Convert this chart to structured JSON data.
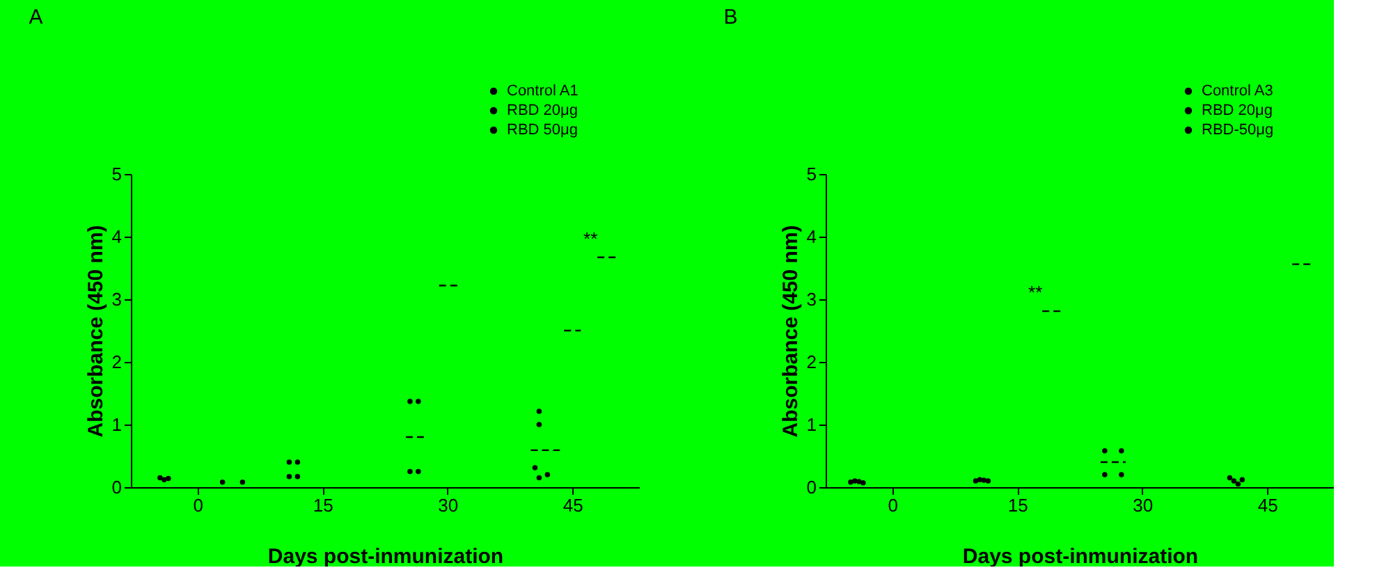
{
  "chart_data": [
    {
      "type": "scatter",
      "title": "A",
      "xlabel": "Days post-inmunization",
      "ylabel": "Absorbance (450 nm)",
      "xlim": [
        -8,
        53
      ],
      "xticks": [
        0,
        15,
        30,
        45
      ],
      "ylim": [
        0,
        5
      ],
      "yticks": [
        0,
        1,
        2,
        3,
        4,
        5
      ],
      "grid": false,
      "legend": "top right",
      "annotations": [
        {
          "text": "**",
          "x": 48,
          "y": 3.67
        }
      ],
      "series": [
        {
          "name": "Control A1",
          "marker": "circle",
          "color": "#000000",
          "x": [
            -4.5,
            -4,
            -3.5,
            11,
            12,
            11,
            12,
            25.5,
            26.5,
            25.5,
            26.5,
            41,
            41,
            40.5,
            41,
            42
          ],
          "values": [
            0.15,
            0.12,
            0.14,
            0.4,
            0.4,
            0.17,
            0.17,
            1.37,
            1.37,
            0.25,
            0.25,
            1.21,
            1.0,
            0.31,
            0.15,
            0.2
          ]
        },
        {
          "marker": "circle",
          "color": "#000000",
          "x": [
            3,
            5.4
          ],
          "values": [
            0.08,
            0.08
          ]
        },
        {
          "type": "line",
          "line_style": "dashed",
          "color": "#000000",
          "x": [
            25,
            27.5,
            null,
            40,
            43.5
          ],
          "values": [
            0.8,
            0.8,
            null,
            0.59,
            0.59
          ]
        },
        {
          "name": "RBD 20μg",
          "type": "line",
          "line_style": "dashed",
          "color": "#000000",
          "x": [
            29,
            31.5,
            null,
            44,
            46
          ],
          "values": [
            3.22,
            3.22,
            null,
            2.5,
            2.5
          ]
        },
        {
          "name": "RBD 50μg",
          "type": "line",
          "line_style": "dashed",
          "color": "#000000",
          "x": [
            48,
            50.5
          ],
          "values": [
            3.67,
            3.67
          ]
        }
      ]
    },
    {
      "type": "scatter",
      "title": "B",
      "xlabel": "Days post-inmunization",
      "ylabel": "Absorbance (450 nm)",
      "xlim": [
        -8,
        53
      ],
      "xticks": [
        0,
        15,
        30,
        45
      ],
      "ylim": [
        0,
        5
      ],
      "yticks": [
        0,
        1,
        2,
        3,
        4,
        5
      ],
      "grid": false,
      "legend": "top right",
      "annotations": [
        {
          "text": "**",
          "x": 18,
          "y": 2.81
        }
      ],
      "series": [
        {
          "name": "Control A3",
          "marker": "circle",
          "color": "#000000",
          "x": [
            -5,
            -4.5,
            -4,
            -3.5,
            10,
            10.5,
            11,
            11.5,
            25.5,
            27.5,
            25.5,
            27.5,
            40.5,
            41,
            41.5,
            42
          ],
          "values": [
            0.08,
            0.1,
            0.09,
            0.07,
            0.1,
            0.12,
            0.11,
            0.1,
            0.58,
            0.58,
            0.2,
            0.2,
            0.15,
            0.1,
            0.05,
            0.12
          ]
        },
        {
          "type": "line",
          "line_style": "dashed",
          "color": "#000000",
          "x": [
            25,
            28
          ],
          "values": [
            0.4,
            0.4
          ]
        },
        {
          "name": "RBD 20μg",
          "type": "line",
          "line_style": "dashed",
          "color": "#000000",
          "x": [
            18,
            20.4
          ],
          "values": [
            2.81,
            2.81
          ]
        },
        {
          "name": "RBD-50μg",
          "type": "line",
          "line_style": "dashed",
          "color": "#000000",
          "x": [
            48,
            50.5
          ],
          "values": [
            3.56,
            3.56
          ]
        }
      ]
    }
  ]
}
